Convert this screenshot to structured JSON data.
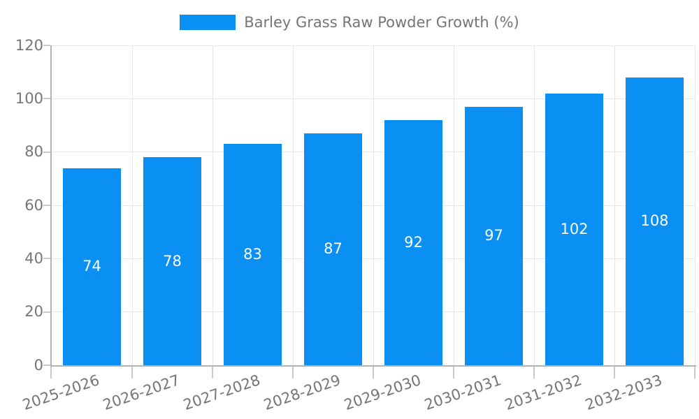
{
  "legend": {
    "label": "Barley Grass Raw Powder Growth (%)"
  },
  "chart_data": {
    "type": "bar",
    "title": "Barley Grass Raw Powder Growth (%)",
    "series_name": "Barley Grass Raw Powder Growth (%)",
    "categories": [
      "2025-2026",
      "2026-2027",
      "2027-2028",
      "2028-2029",
      "2029-2030",
      "2030-2031",
      "2031-2032",
      "2032-2033"
    ],
    "values": [
      74,
      78,
      83,
      87,
      92,
      97,
      102,
      108
    ],
    "value_labels_position": "inside-center",
    "xlabel": "",
    "ylabel": "",
    "ylim": [
      0,
      120
    ],
    "yticks": [
      0,
      20,
      40,
      60,
      80,
      100,
      120
    ],
    "grid": true,
    "legend_position": "top",
    "x_tick_rotation_deg": -19
  },
  "colors": {
    "bar": "#0990f2",
    "grid": "#e6e6e6",
    "axis": "#b3b3b3",
    "tick_mark": "#c9c9c9",
    "tick_text": "#757575",
    "value_label_text": "#ffffff",
    "background": "#ffffff"
  }
}
